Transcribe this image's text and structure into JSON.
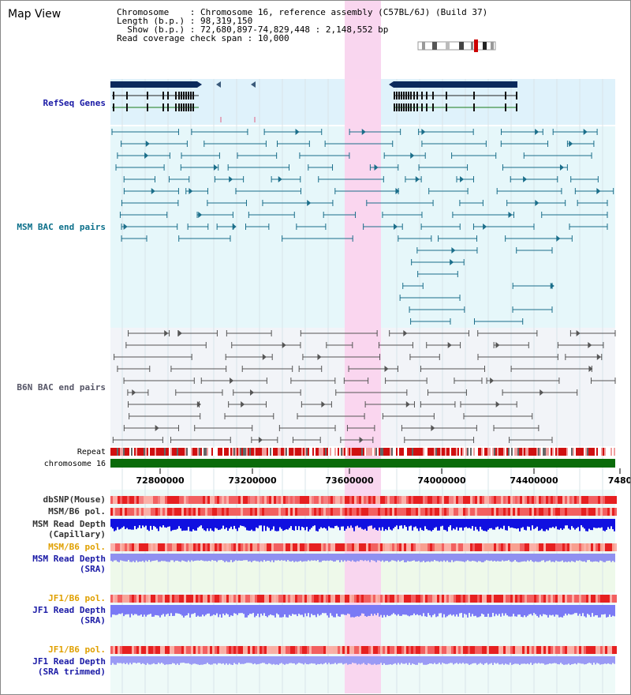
{
  "title": "Map View",
  "info": {
    "chromosome_key": "Chromosome",
    "chromosome_val": "Chromosome 16, reference assembly (C57BL/6J) (Build 37)",
    "length_key": "Length (b.p.)",
    "length_val": "98,319,150",
    "show_key": "Show (b.p.)",
    "show_val": "72,680,897-74,829,448 : 2,148,552 bp",
    "span_key": "Read coverage check span",
    "span_val": "10,000"
  },
  "tracks": {
    "refseq": "RefSeq Genes",
    "msm_bac": "MSM BAC end pairs",
    "b6n_bac": "B6N BAC end pairs",
    "repeat": "Repeat",
    "chromosome": "chromosome 16",
    "dbsnp": "dbSNP(Mouse)",
    "msm_b6_pol_1": "MSM/B6 pol.",
    "msm_read_depth_cap_1": "MSM Read Depth",
    "msm_read_depth_cap_2": "(Capillary)",
    "msm_b6_pol_2": "MSM/B6 pol.",
    "msm_read_depth_sra_1": "MSM Read Depth",
    "msm_read_depth_sra_2": "(SRA)",
    "jf1_b6_pol_1": "JF1/B6 pol.",
    "jf1_read_depth_sra_1": "JF1 Read Depth",
    "jf1_read_depth_sra_2": "(SRA)",
    "jf1_b6_pol_2": "JF1/B6 pol.",
    "jf1_read_depth_trim_1": "JF1 Read Depth",
    "jf1_read_depth_trim_2": "(SRA trimmed)"
  },
  "axis": {
    "ticks": [
      "72800000",
      "73200000",
      "73600000",
      "74000000",
      "74400000",
      "7480"
    ]
  },
  "colors": {
    "gene_dark": "#0b2a5c",
    "refseq_bg": "#dff2fb",
    "msm_bg": "#e6f7fa",
    "msm_feature": "#1a6e8a",
    "b6n_bg": "#f2f4f8",
    "b6n_feature": "#555555",
    "highlight": "#f9d6ef",
    "chromosome": "#0a6b0a",
    "depth_blue": "#1010e0",
    "depth_light": "#7a7af5",
    "pol_red": "#e83030"
  }
}
